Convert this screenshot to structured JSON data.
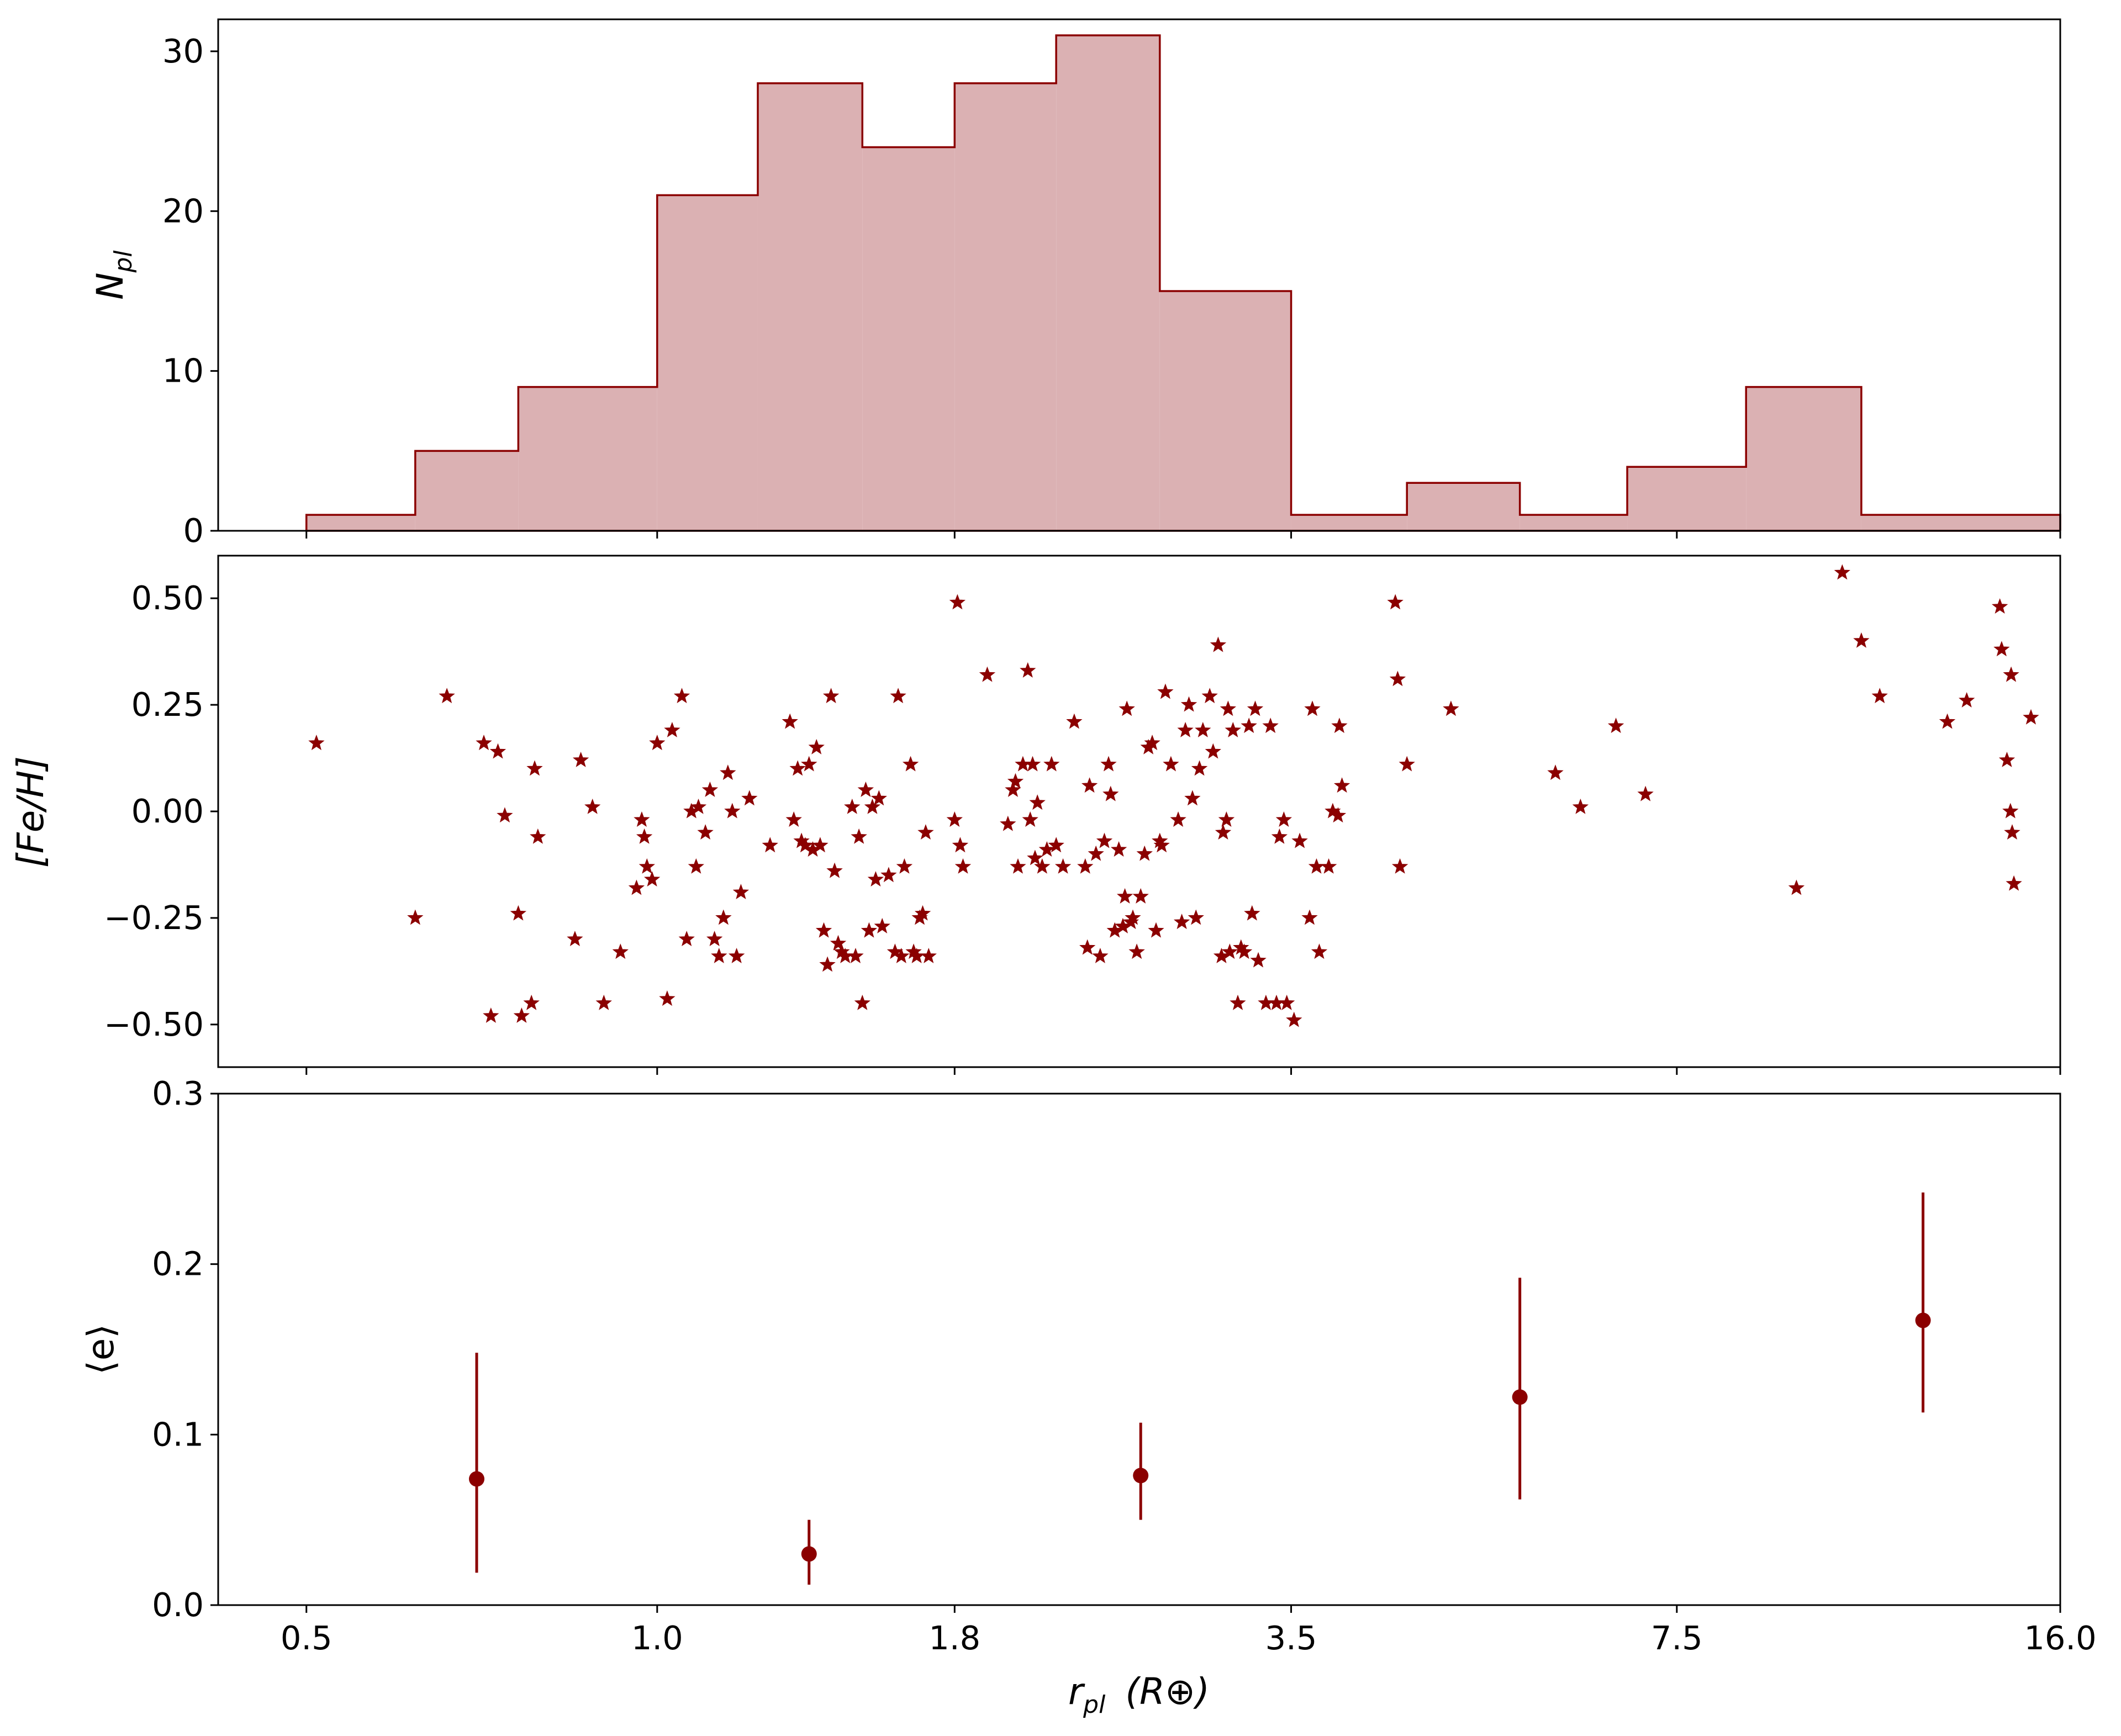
{
  "colors": {
    "marker": "#8b0000",
    "hist_fill": "#dbb1b3",
    "hist_edge": "#8b0000"
  },
  "chart_data": [
    {
      "type": "histogram",
      "ylabel_main": "N",
      "ylabel_sub": "pl",
      "x_scale": "log",
      "ylim": [
        0,
        32
      ],
      "yticks": [
        "0",
        "10",
        "20",
        "30"
      ],
      "bin_edges": [
        0.5,
        0.62,
        0.76,
        1.0,
        1.22,
        1.5,
        1.8,
        2.2,
        2.7,
        3.5,
        4.4,
        5.5,
        6.8,
        8.6,
        10.8,
        16.0
      ],
      "counts": [
        1,
        5,
        9,
        21,
        28,
        24,
        28,
        31,
        15,
        1,
        3,
        1,
        4,
        9,
        1
      ]
    },
    {
      "type": "scatter",
      "marker": "star",
      "ylabel": "[Fe/H]",
      "x_scale": "log",
      "ylim": [
        -0.6,
        0.6
      ],
      "yticks": [
        "0.50",
        "0.25",
        "0.00",
        "−0.25",
        "−0.50"
      ],
      "points": [
        [
          0.51,
          0.16
        ],
        [
          0.62,
          -0.25
        ],
        [
          0.66,
          0.27
        ],
        [
          0.71,
          0.16
        ],
        [
          0.72,
          -0.48
        ],
        [
          0.73,
          0.14
        ],
        [
          0.74,
          -0.01
        ],
        [
          0.76,
          -0.24
        ],
        [
          0.765,
          -0.48
        ],
        [
          0.78,
          -0.45
        ],
        [
          0.785,
          0.1
        ],
        [
          0.79,
          -0.06
        ],
        [
          0.85,
          -0.3
        ],
        [
          0.86,
          0.12
        ],
        [
          0.88,
          0.01
        ],
        [
          0.9,
          -0.45
        ],
        [
          0.93,
          -0.33
        ],
        [
          0.96,
          -0.18
        ],
        [
          0.97,
          -0.02
        ],
        [
          0.975,
          -0.06
        ],
        [
          0.98,
          -0.13
        ],
        [
          0.99,
          -0.16
        ],
        [
          1.0,
          0.16
        ],
        [
          1.02,
          -0.44
        ],
        [
          1.03,
          0.19
        ],
        [
          1.05,
          0.27
        ],
        [
          1.06,
          -0.3
        ],
        [
          1.07,
          0.0
        ],
        [
          1.08,
          -0.13
        ],
        [
          1.085,
          0.01
        ],
        [
          1.1,
          -0.05
        ],
        [
          1.11,
          0.05
        ],
        [
          1.12,
          -0.3
        ],
        [
          1.13,
          -0.34
        ],
        [
          1.14,
          -0.25
        ],
        [
          1.15,
          0.09
        ],
        [
          1.16,
          0.0
        ],
        [
          1.17,
          -0.34
        ],
        [
          1.18,
          -0.19
        ],
        [
          1.2,
          0.03
        ],
        [
          1.25,
          -0.08
        ],
        [
          1.3,
          0.21
        ],
        [
          1.31,
          -0.02
        ],
        [
          1.32,
          0.1
        ],
        [
          1.33,
          -0.07
        ],
        [
          1.34,
          -0.08
        ],
        [
          1.35,
          0.11
        ],
        [
          1.36,
          -0.09
        ],
        [
          1.37,
          0.15
        ],
        [
          1.38,
          -0.08
        ],
        [
          1.39,
          -0.28
        ],
        [
          1.4,
          -0.36
        ],
        [
          1.41,
          0.27
        ],
        [
          1.42,
          -0.14
        ],
        [
          1.43,
          -0.31
        ],
        [
          1.44,
          -0.33
        ],
        [
          1.45,
          -0.34
        ],
        [
          1.47,
          0.01
        ],
        [
          1.48,
          -0.34
        ],
        [
          1.49,
          -0.06
        ],
        [
          1.5,
          -0.45
        ],
        [
          1.51,
          0.05
        ],
        [
          1.52,
          -0.28
        ],
        [
          1.53,
          0.01
        ],
        [
          1.54,
          -0.16
        ],
        [
          1.55,
          0.03
        ],
        [
          1.56,
          -0.27
        ],
        [
          1.58,
          -0.15
        ],
        [
          1.6,
          -0.33
        ],
        [
          1.61,
          0.27
        ],
        [
          1.62,
          -0.34
        ],
        [
          1.63,
          -0.13
        ],
        [
          1.65,
          0.11
        ],
        [
          1.66,
          -0.33
        ],
        [
          1.67,
          -0.34
        ],
        [
          1.68,
          -0.25
        ],
        [
          1.69,
          -0.24
        ],
        [
          1.7,
          -0.05
        ],
        [
          1.71,
          -0.34
        ],
        [
          1.8,
          -0.02
        ],
        [
          1.81,
          0.49
        ],
        [
          1.82,
          -0.08
        ],
        [
          1.83,
          -0.13
        ],
        [
          1.92,
          0.32
        ],
        [
          2.0,
          -0.03
        ],
        [
          2.02,
          0.05
        ],
        [
          2.03,
          0.07
        ],
        [
          2.04,
          -0.13
        ],
        [
          2.06,
          0.11
        ],
        [
          2.08,
          0.33
        ],
        [
          2.09,
          -0.02
        ],
        [
          2.1,
          0.11
        ],
        [
          2.11,
          -0.11
        ],
        [
          2.12,
          0.02
        ],
        [
          2.14,
          -0.13
        ],
        [
          2.16,
          -0.09
        ],
        [
          2.18,
          0.11
        ],
        [
          2.2,
          -0.08
        ],
        [
          2.23,
          -0.13
        ],
        [
          2.28,
          0.21
        ],
        [
          2.33,
          -0.13
        ],
        [
          2.34,
          -0.32
        ],
        [
          2.35,
          0.06
        ],
        [
          2.38,
          -0.1
        ],
        [
          2.4,
          -0.34
        ],
        [
          2.42,
          -0.07
        ],
        [
          2.44,
          0.11
        ],
        [
          2.45,
          0.04
        ],
        [
          2.47,
          -0.28
        ],
        [
          2.49,
          -0.09
        ],
        [
          2.51,
          -0.27
        ],
        [
          2.52,
          -0.2
        ],
        [
          2.53,
          0.24
        ],
        [
          2.55,
          -0.26
        ],
        [
          2.56,
          -0.25
        ],
        [
          2.58,
          -0.33
        ],
        [
          2.6,
          -0.2
        ],
        [
          2.62,
          -0.1
        ],
        [
          2.64,
          0.15
        ],
        [
          2.66,
          0.16
        ],
        [
          2.68,
          -0.28
        ],
        [
          2.7,
          -0.07
        ],
        [
          2.71,
          -0.08
        ],
        [
          2.73,
          0.28
        ],
        [
          2.76,
          0.11
        ],
        [
          2.8,
          -0.02
        ],
        [
          2.82,
          -0.26
        ],
        [
          2.84,
          0.19
        ],
        [
          2.86,
          0.25
        ],
        [
          2.88,
          0.03
        ],
        [
          2.9,
          -0.25
        ],
        [
          2.92,
          0.1
        ],
        [
          2.94,
          0.19
        ],
        [
          2.98,
          0.27
        ],
        [
          3.0,
          0.14
        ],
        [
          3.03,
          0.39
        ],
        [
          3.05,
          -0.34
        ],
        [
          3.06,
          -0.05
        ],
        [
          3.08,
          -0.02
        ],
        [
          3.09,
          0.24
        ],
        [
          3.1,
          -0.33
        ],
        [
          3.12,
          0.19
        ],
        [
          3.15,
          -0.45
        ],
        [
          3.17,
          -0.32
        ],
        [
          3.19,
          -0.33
        ],
        [
          3.22,
          0.2
        ],
        [
          3.24,
          -0.24
        ],
        [
          3.26,
          0.24
        ],
        [
          3.28,
          -0.35
        ],
        [
          3.33,
          -0.45
        ],
        [
          3.36,
          0.2
        ],
        [
          3.4,
          -0.45
        ],
        [
          3.42,
          -0.06
        ],
        [
          3.45,
          -0.02
        ],
        [
          3.47,
          -0.45
        ],
        [
          3.52,
          -0.49
        ],
        [
          3.56,
          -0.07
        ],
        [
          3.63,
          -0.25
        ],
        [
          3.65,
          0.24
        ],
        [
          3.68,
          -0.13
        ],
        [
          3.7,
          -0.33
        ],
        [
          3.77,
          -0.13
        ],
        [
          3.8,
          0.0
        ],
        [
          3.84,
          -0.01
        ],
        [
          3.85,
          0.2
        ],
        [
          3.87,
          0.06
        ],
        [
          4.3,
          0.49
        ],
        [
          4.32,
          0.31
        ],
        [
          4.34,
          -0.13
        ],
        [
          4.4,
          0.11
        ],
        [
          4.8,
          0.24
        ],
        [
          5.9,
          0.09
        ],
        [
          6.2,
          0.01
        ],
        [
          6.65,
          0.2
        ],
        [
          7.05,
          0.04
        ],
        [
          9.5,
          -0.18
        ],
        [
          10.4,
          0.56
        ],
        [
          10.8,
          0.4
        ],
        [
          11.2,
          0.27
        ],
        [
          12.8,
          0.21
        ],
        [
          13.3,
          0.26
        ],
        [
          14.2,
          0.48
        ],
        [
          14.25,
          0.38
        ],
        [
          14.4,
          0.12
        ],
        [
          14.5,
          0.0
        ],
        [
          14.52,
          0.32
        ],
        [
          14.55,
          -0.05
        ],
        [
          14.6,
          -0.17
        ],
        [
          15.1,
          0.22
        ]
      ]
    },
    {
      "type": "scatter",
      "marker": "circle",
      "errorbars": true,
      "ylabel": "⟨e⟩",
      "xlabel_main": "r",
      "xlabel_sub": "pl",
      "xlabel_unit": "(R⊕)",
      "x_scale": "log",
      "ylim": [
        0,
        0.3
      ],
      "yticks": [
        "0.0",
        "0.1",
        "0.2",
        "0.3"
      ],
      "xticks": [
        {
          "value": 0.5,
          "label": "0.5"
        },
        {
          "value": 1.0,
          "label": "1.0"
        },
        {
          "value": 1.8,
          "label": "1.8"
        },
        {
          "value": 3.5,
          "label": "3.5"
        },
        {
          "value": 7.5,
          "label": "7.5"
        },
        {
          "value": 16.0,
          "label": "16.0"
        }
      ],
      "xlim": [
        0.42,
        16.0
      ],
      "points": [
        {
          "x": 0.7,
          "y": 0.074,
          "ylo": 0.019,
          "yhi": 0.148
        },
        {
          "x": 1.35,
          "y": 0.03,
          "ylo": 0.012,
          "yhi": 0.05
        },
        {
          "x": 2.6,
          "y": 0.076,
          "ylo": 0.05,
          "yhi": 0.107
        },
        {
          "x": 5.5,
          "y": 0.122,
          "ylo": 0.062,
          "yhi": 0.192
        },
        {
          "x": 12.2,
          "y": 0.167,
          "ylo": 0.113,
          "yhi": 0.242
        }
      ]
    }
  ]
}
